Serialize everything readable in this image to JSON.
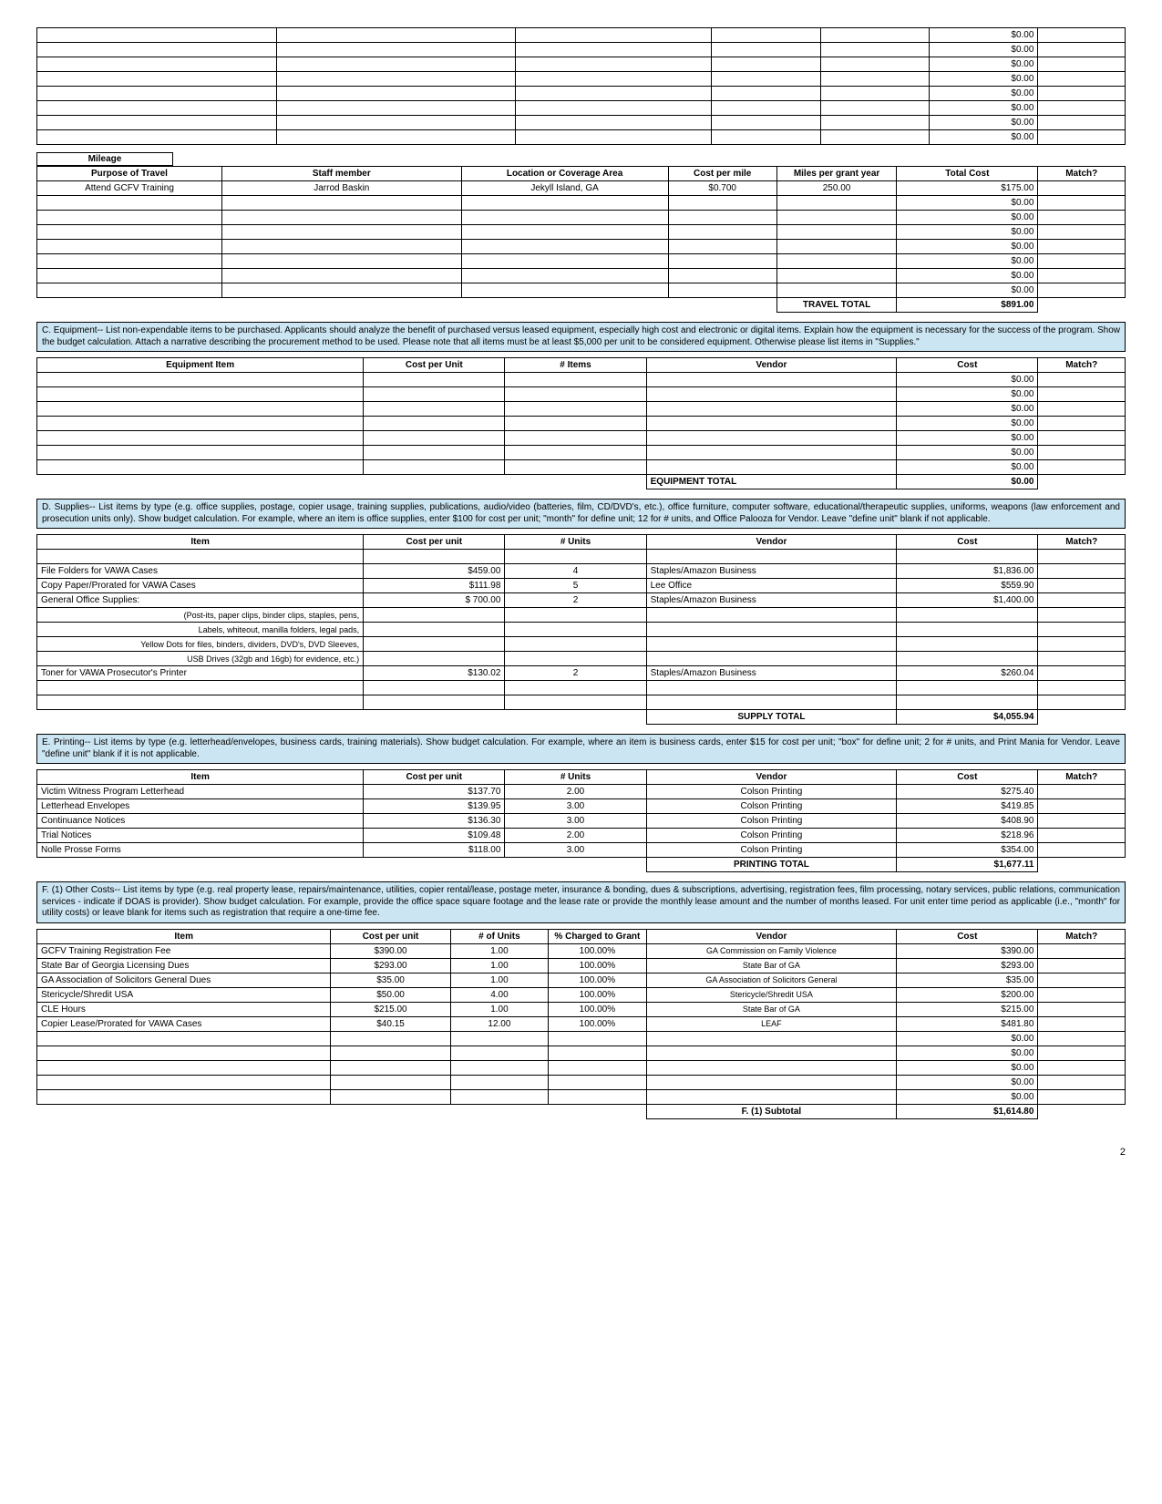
{
  "topTable": {
    "rows": 8,
    "cost": "$0.00"
  },
  "mileage": {
    "label": "Mileage",
    "headers": [
      "Purpose of Travel",
      "Staff member",
      "Location or Coverage Area",
      "Cost per mile",
      "Miles per grant year",
      "Total Cost",
      "Match?"
    ],
    "rows": [
      {
        "purpose": "Attend GCFV Training",
        "staff": "Jarrod Baskin",
        "loc": "Jekyll Island, GA",
        "cpm": "$0.700",
        "miles": "250.00",
        "total": "$175.00",
        "match": ""
      },
      {
        "purpose": "",
        "staff": "",
        "loc": "",
        "cpm": "",
        "miles": "",
        "total": "$0.00",
        "match": ""
      },
      {
        "purpose": "",
        "staff": "",
        "loc": "",
        "cpm": "",
        "miles": "",
        "total": "$0.00",
        "match": ""
      },
      {
        "purpose": "",
        "staff": "",
        "loc": "",
        "cpm": "",
        "miles": "",
        "total": "$0.00",
        "match": ""
      },
      {
        "purpose": "",
        "staff": "",
        "loc": "",
        "cpm": "",
        "miles": "",
        "total": "$0.00",
        "match": ""
      },
      {
        "purpose": "",
        "staff": "",
        "loc": "",
        "cpm": "",
        "miles": "",
        "total": "$0.00",
        "match": ""
      },
      {
        "purpose": "",
        "staff": "",
        "loc": "",
        "cpm": "",
        "miles": "",
        "total": "$0.00",
        "match": ""
      },
      {
        "purpose": "",
        "staff": "",
        "loc": "",
        "cpm": "",
        "miles": "",
        "total": "$0.00",
        "match": ""
      }
    ],
    "totalLabel": "TRAVEL TOTAL",
    "totalValue": "$891.00"
  },
  "sectionC": {
    "text": "C. Equipment-- List non-expendable items to be purchased.  Applicants should analyze the benefit of purchased versus leased equipment, especially high cost and electronic or digital items.  Explain how the equipment is necessary for the success of the program.  Show the budget calculation.  Attach a narrative describing the procurement method to be used.  Please note that all items must be at least $5,000 per unit to be considered equipment. Otherwise please list items in \"Supplies.\""
  },
  "equipment": {
    "headers": [
      "Equipment Item",
      "Cost per Unit",
      "# Items",
      "Vendor",
      "Cost",
      "Match?"
    ],
    "rows": 7,
    "cost": "$0.00",
    "totalLabel": "EQUIPMENT TOTAL",
    "totalValue": "$0.00"
  },
  "sectionD": {
    "text": "D. Supplies-- List items by type (e.g. office supplies, postage, copier usage, training supplies, publications, audio/video (batteries, film, CD/DVD's, etc.), office furniture, computer software, educational/therapeutic supplies, uniforms, weapons (law enforcement and prosecution units only).   Show budget calculation. For example, where an item is office supplies, enter $100 for cost per unit; \"month\" for define unit; 12 for # units, and Office Palooza for Vendor. Leave \"define unit\" blank if not applicable."
  },
  "supplies": {
    "headers": [
      "Item",
      "Cost per unit",
      "# Units",
      "Vendor",
      "Cost",
      "Match?"
    ],
    "rows": [
      {
        "item": "",
        "cpu": "",
        "units": "",
        "vendor": "",
        "cost": "",
        "match": ""
      },
      {
        "item": "File Folders for VAWA Cases",
        "cpu": "$459.00",
        "units": "4",
        "vendor": "Staples/Amazon Business",
        "cost": "$1,836.00",
        "match": ""
      },
      {
        "item": "Copy Paper/Prorated for VAWA Cases",
        "cpu": "$111.98",
        "units": "5",
        "vendor": "Lee Office",
        "cost": "$559.90",
        "match": ""
      },
      {
        "item": "General Office Supplies:",
        "cpu": "$        700.00",
        "units": "2",
        "vendor": "Staples/Amazon Business",
        "cost": "$1,400.00",
        "match": ""
      },
      {
        "item": "(Post-its, paper clips, binder clips, staples, pens,",
        "cpu": "",
        "units": "",
        "vendor": "",
        "cost": "",
        "match": ""
      },
      {
        "item": "Labels, whiteout, manilla folders, legal pads,",
        "cpu": "",
        "units": "",
        "vendor": "",
        "cost": "",
        "match": ""
      },
      {
        "item": "Yellow Dots for files, binders, dividers, DVD's, DVD Sleeves,",
        "cpu": "",
        "units": "",
        "vendor": "",
        "cost": "",
        "match": ""
      },
      {
        "item": "USB Drives (32gb and 16gb) for evidence, etc.)",
        "cpu": "",
        "units": "",
        "vendor": "",
        "cost": "",
        "match": ""
      },
      {
        "item": "Toner for VAWA Prosecutor's Printer",
        "cpu": "$130.02",
        "units": "2",
        "vendor": "Staples/Amazon Business",
        "cost": "$260.04",
        "match": ""
      },
      {
        "item": "",
        "cpu": "",
        "units": "",
        "vendor": "",
        "cost": "",
        "match": ""
      },
      {
        "item": "",
        "cpu": "",
        "units": "",
        "vendor": "",
        "cost": "",
        "match": ""
      }
    ],
    "totalLabel": "SUPPLY TOTAL",
    "totalValue": "$4,055.94"
  },
  "sectionE": {
    "text": "E. Printing-- List items by type (e.g. letterhead/envelopes, business cards, training materials).  Show budget calculation. For example, where an item is business cards, enter $15 for cost per unit; \"box\" for define unit; 2 for # units, and Print Mania for Vendor. Leave \"define unit\" blank if it is not applicable."
  },
  "printing": {
    "headers": [
      "Item",
      "Cost per unit",
      "# Units",
      "Vendor",
      "Cost",
      "Match?"
    ],
    "rows": [
      {
        "item": "Victim Witness Program Letterhead",
        "cpu": "$137.70",
        "units": "2.00",
        "vendor": "Colson Printing",
        "cost": "$275.40",
        "match": ""
      },
      {
        "item": "Letterhead Envelopes",
        "cpu": "$139.95",
        "units": "3.00",
        "vendor": "Colson Printing",
        "cost": "$419.85",
        "match": ""
      },
      {
        "item": "Continuance Notices",
        "cpu": "$136.30",
        "units": "3.00",
        "vendor": "Colson Printing",
        "cost": "$408.90",
        "match": ""
      },
      {
        "item": "Trial Notices",
        "cpu": "$109.48",
        "units": "2.00",
        "vendor": "Colson Printing",
        "cost": "$218.96",
        "match": ""
      },
      {
        "item": "Nolle Prosse Forms",
        "cpu": "$118.00",
        "units": "3.00",
        "vendor": "Colson Printing",
        "cost": "$354.00",
        "match": ""
      }
    ],
    "totalLabel": "PRINTING TOTAL",
    "totalValue": "$1,677.11"
  },
  "sectionF": {
    "text": "F. (1) Other Costs-- List items by type (e.g. real property lease, repairs/maintenance, utilities, copier rental/lease, postage meter, insurance & bonding, dues & subscriptions, advertising, registration fees, film processing, notary services, public relations, communication services - indicate if DOAS is provider).  Show budget calculation.  For example, provide the office space square footage and the lease rate or provide the monthly lease amount and the number of months leased. For unit enter time period as applicable (i.e., \"month\" for utility costs) or leave blank for items such as registration that require a one-time fee."
  },
  "other": {
    "headers": [
      "Item",
      "Cost per unit",
      "# of Units",
      "% Charged to Grant",
      "Vendor",
      "Cost",
      "Match?"
    ],
    "rows": [
      {
        "item": "GCFV Training Registration Fee",
        "cpu": "$390.00",
        "units": "1.00",
        "pct": "100.00%",
        "vendor": "GA Commission on Family Violence",
        "cost": "$390.00",
        "match": ""
      },
      {
        "item": "State Bar of Georgia Licensing Dues",
        "cpu": "$293.00",
        "units": "1.00",
        "pct": "100.00%",
        "vendor": "State Bar of GA",
        "cost": "$293.00",
        "match": ""
      },
      {
        "item": "GA Association of Solicitors General Dues",
        "cpu": "$35.00",
        "units": "1.00",
        "pct": "100.00%",
        "vendor": "GA Association of Solicitors General",
        "cost": "$35.00",
        "match": ""
      },
      {
        "item": "Stericycle/Shredit USA",
        "cpu": "$50.00",
        "units": "4.00",
        "pct": "100.00%",
        "vendor": "Stericycle/Shredit USA",
        "cost": "$200.00",
        "match": ""
      },
      {
        "item": "CLE Hours",
        "cpu": "$215.00",
        "units": "1.00",
        "pct": "100.00%",
        "vendor": "State Bar of GA",
        "cost": "$215.00",
        "match": ""
      },
      {
        "item": "Copier Lease/Prorated for VAWA Cases",
        "cpu": "$40.15",
        "units": "12.00",
        "pct": "100.00%",
        "vendor": "LEAF",
        "cost": "$481.80",
        "match": ""
      },
      {
        "item": "",
        "cpu": "",
        "units": "",
        "pct": "",
        "vendor": "",
        "cost": "$0.00",
        "match": ""
      },
      {
        "item": "",
        "cpu": "",
        "units": "",
        "pct": "",
        "vendor": "",
        "cost": "$0.00",
        "match": ""
      },
      {
        "item": "",
        "cpu": "",
        "units": "",
        "pct": "",
        "vendor": "",
        "cost": "$0.00",
        "match": ""
      },
      {
        "item": "",
        "cpu": "",
        "units": "",
        "pct": "",
        "vendor": "",
        "cost": "$0.00",
        "match": ""
      },
      {
        "item": "",
        "cpu": "",
        "units": "",
        "pct": "",
        "vendor": "",
        "cost": "$0.00",
        "match": ""
      }
    ],
    "totalLabel": "F. (1) Subtotal",
    "totalValue": "$1,614.80"
  },
  "pageNum": "2"
}
